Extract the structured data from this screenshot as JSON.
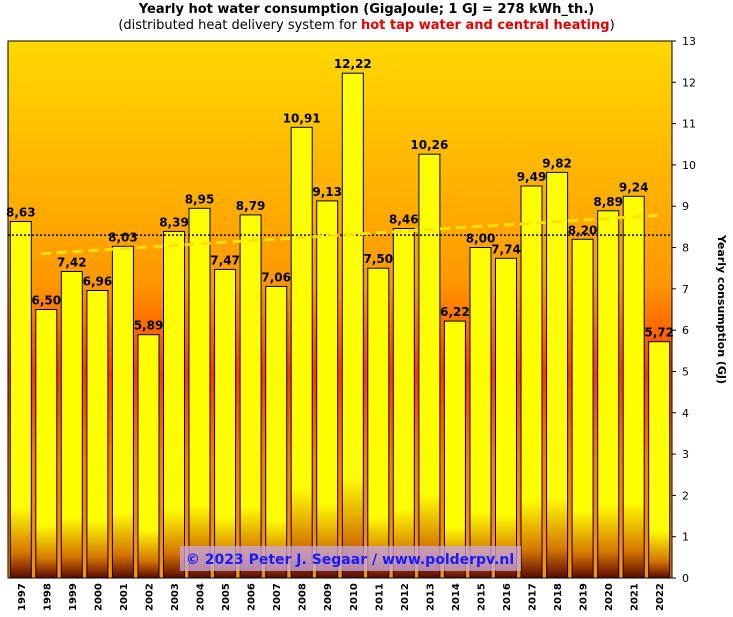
{
  "header": {
    "title": "Yearly hot water consumption  (GigaJoule;  1 GJ = 278 kWh_th.)",
    "subtitle_prefix": "(distributed  heat delivery  system for ",
    "subtitle_highlight": "hot tap water and central heating",
    "subtitle_suffix": ")"
  },
  "watermark": "© 2023  Peter  J.  Segaar  /  www.polderpv.nl",
  "chart_data": {
    "type": "bar",
    "title": "Yearly hot water consumption  (GigaJoule;  1 GJ = 278 kWh_th.)",
    "ylabel": "Yearly consumption (GJ)",
    "ylim": [
      0,
      13
    ],
    "y_axis_side": "right",
    "categories": [
      "1997",
      "1998",
      "1999",
      "2000",
      "2001",
      "2002",
      "2003",
      "2004",
      "2005",
      "2006",
      "2007",
      "2008",
      "2009",
      "2010",
      "2011",
      "2012",
      "2013",
      "2014",
      "2015",
      "2016",
      "2017",
      "2018",
      "2019",
      "2020",
      "2021",
      "2022"
    ],
    "values": [
      8.63,
      6.5,
      7.42,
      6.96,
      8.03,
      5.89,
      8.39,
      8.95,
      7.47,
      8.79,
      7.06,
      10.91,
      9.13,
      12.22,
      7.5,
      8.46,
      10.26,
      6.22,
      8.0,
      7.74,
      9.49,
      9.82,
      8.2,
      8.89,
      9.24,
      5.72
    ],
    "value_labels": [
      "8,63",
      "6,50",
      "7,42",
      "6,96",
      "8,03",
      "5,89",
      "8,39",
      "8,95",
      "7,47",
      "8,79",
      "7,06",
      "10,91",
      "9,13",
      "12,22",
      "7,50",
      "8,46",
      "10,26",
      "6,22",
      "8,00",
      "7,74",
      "9,49",
      "9,82",
      "8,20",
      "8,89",
      "9,24",
      "5,72"
    ],
    "yticks": [
      0,
      1,
      2,
      3,
      4,
      5,
      6,
      7,
      8,
      9,
      10,
      11,
      12,
      13
    ],
    "average_line": 8.3,
    "trend_line": {
      "start": 7.85,
      "end": 8.78
    },
    "colors": {
      "bar": "#ffff00",
      "bar_shade": "#7a1400",
      "background_top": "#ffd800",
      "background_mid": "#ff8c00",
      "background_bottom": "#4a0a00",
      "trend": "#ffe000",
      "average": "#000000"
    }
  }
}
